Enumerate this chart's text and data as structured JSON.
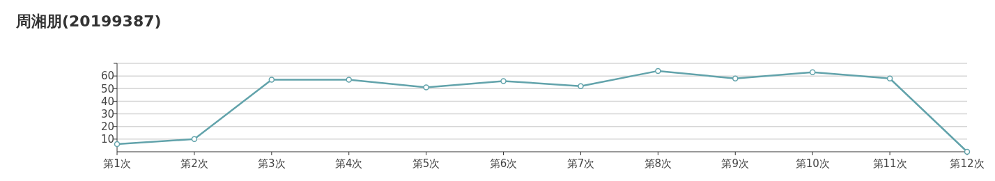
{
  "chart_data": {
    "type": "line",
    "title": "周湘朋(20199387)",
    "categories": [
      "第1次",
      "第2次",
      "第3次",
      "第4次",
      "第5次",
      "第6次",
      "第7次",
      "第8次",
      "第9次",
      "第10次",
      "第11次",
      "第12次"
    ],
    "series": [
      {
        "color": "#62a3ab",
        "values": [
          6,
          10,
          57,
          57,
          51,
          56,
          52,
          64,
          58,
          63,
          58,
          0
        ]
      }
    ],
    "ylim": [
      0,
      70
    ],
    "yticks": [
      10,
      20,
      30,
      40,
      50,
      60,
      {
        "value": 70,
        "label": null
      }
    ],
    "grid": "y",
    "marker": "circle",
    "line_style": "solid"
  }
}
